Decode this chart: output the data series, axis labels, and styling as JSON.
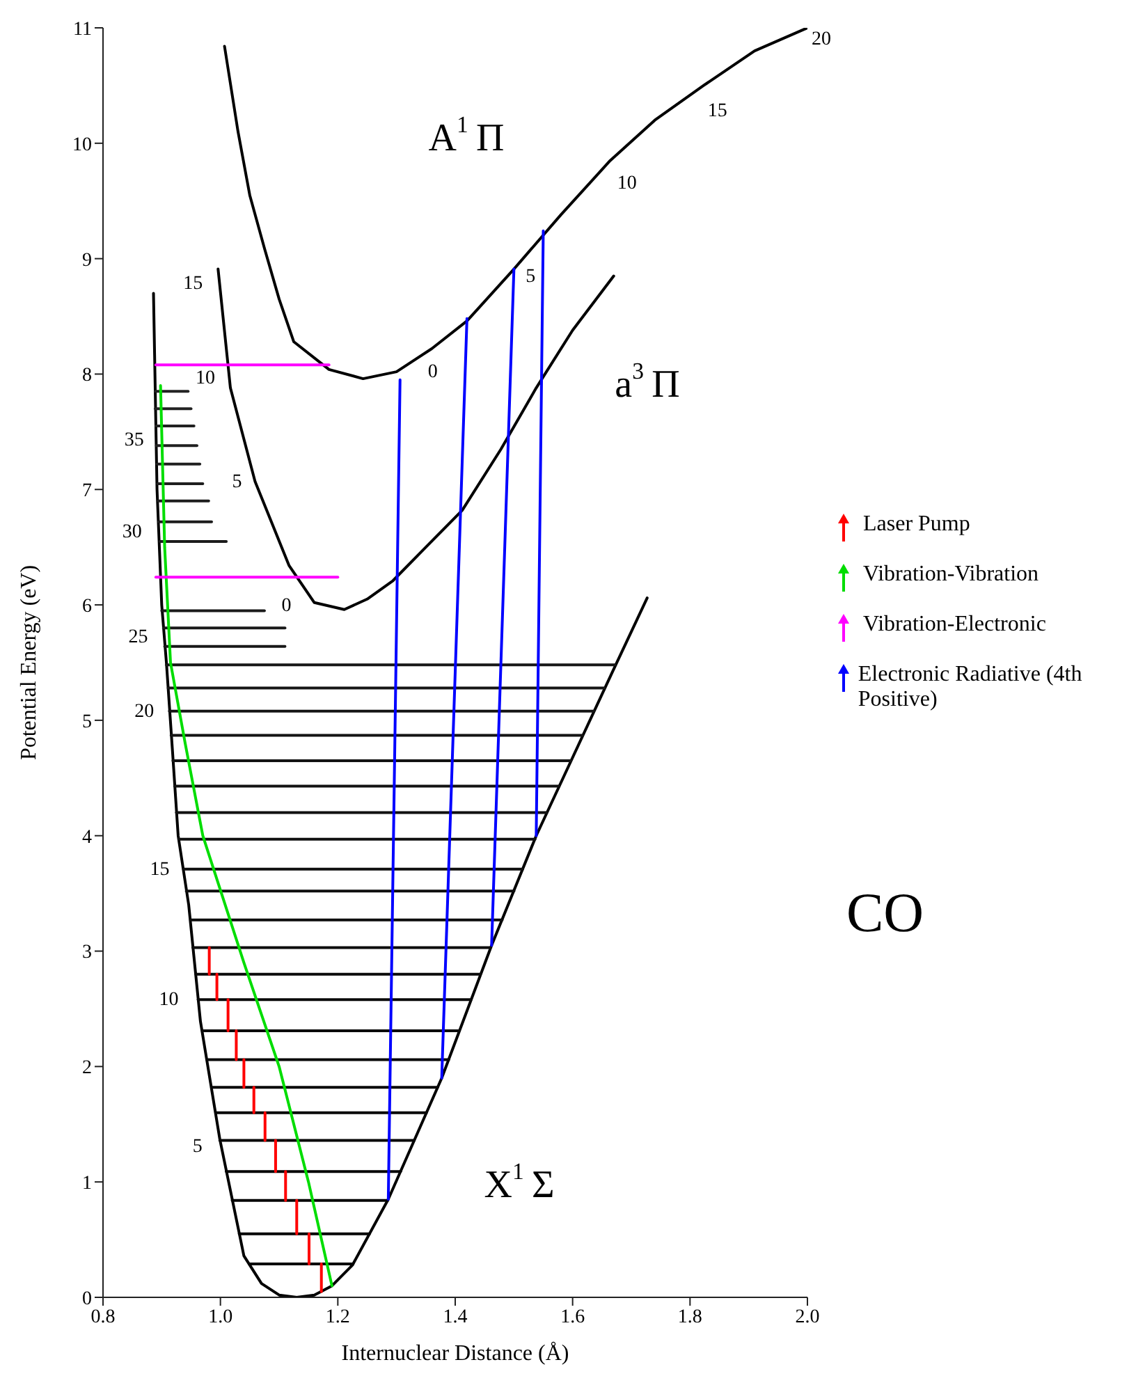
{
  "chart_data": {
    "type": "line",
    "xlabel": "Internuclear Distance (Å)",
    "ylabel": "Potential Energy (eV)",
    "xlim": [
      0.8,
      2.0
    ],
    "ylim": [
      0,
      11
    ],
    "xticks": [
      0.8,
      {
        "value": 1,
        "label": "1.0"
      },
      1.2,
      1.4,
      1.6,
      1.8,
      {
        "value": 2,
        "label": "2.0"
      }
    ],
    "yticks": [
      0,
      1,
      2,
      3,
      4,
      5,
      6,
      7,
      8,
      9,
      10,
      11
    ],
    "grid": false,
    "legend": "right",
    "marker": "none",
    "series": [
      {
        "color": "#000000",
        "x": [
          0.886,
          0.892,
          0.9,
          0.908,
          0.918,
          0.928,
          0.946,
          0.966,
          0.999,
          1.04,
          1.07,
          1.1,
          1.13,
          1.16,
          1.19,
          1.225,
          1.286,
          1.377,
          1.462,
          1.538,
          1.667,
          1.727
        ],
        "values": [
          8.7,
          7.0,
          6.0,
          5.5,
          4.76,
          4.0,
          3.4,
          2.39,
          1.37,
          0.36,
          0.12,
          0.02,
          0,
          0.02,
          0.1,
          0.28,
          0.85,
          1.9,
          3.05,
          4.0,
          5.41,
          6.06
        ]
      },
      {
        "color": "#000000",
        "x": [
          0.996,
          1.017,
          1.059,
          1.117,
          1.16,
          1.211,
          1.25,
          1.294,
          1.35,
          1.412,
          1.478,
          1.538,
          1.6,
          1.67
        ],
        "values": [
          8.91,
          7.88,
          7.07,
          6.34,
          6.02,
          5.96,
          6.05,
          6.21,
          6.5,
          6.82,
          7.35,
          7.88,
          8.38,
          8.85
        ]
      },
      {
        "color": "#000000",
        "x": [
          1.007,
          1.03,
          1.05,
          1.075,
          1.1,
          1.125,
          1.185,
          1.243,
          1.3,
          1.36,
          1.42,
          1.5,
          1.58,
          1.664,
          1.74,
          1.823,
          1.91,
          2.0
        ],
        "values": [
          10.84,
          10.1,
          9.55,
          9.09,
          8.65,
          8.28,
          8.04,
          7.96,
          8.02,
          8.22,
          8.46,
          8.91,
          9.38,
          9.85,
          10.2,
          10.5,
          10.8,
          11.0
        ]
      },
      {
        "color": "#010101",
        "x": [
          1.049,
          1.226
        ],
        "values": [
          0.29,
          0.29
        ]
      },
      {
        "color": "#020202",
        "x": [
          1.032,
          1.254
        ],
        "values": [
          0.55,
          0.55
        ]
      },
      {
        "color": "#030303",
        "x": [
          1.02,
          1.285
        ],
        "values": [
          0.84,
          0.84
        ]
      },
      {
        "color": "#040404",
        "x": [
          1.01,
          1.307
        ],
        "values": [
          1.09,
          1.09
        ]
      },
      {
        "color": "#050505",
        "x": [
          0.999,
          1.33
        ],
        "values": [
          1.36,
          1.36
        ]
      },
      {
        "color": "#060606",
        "x": [
          0.992,
          1.351
        ],
        "values": [
          1.6,
          1.6
        ]
      },
      {
        "color": "#070707",
        "x": [
          0.985,
          1.37
        ],
        "values": [
          1.82,
          1.82
        ]
      },
      {
        "color": "#080808",
        "x": [
          0.977,
          1.389
        ],
        "values": [
          2.06,
          2.06
        ]
      },
      {
        "color": "#090909",
        "x": [
          0.969,
          1.407
        ],
        "values": [
          2.31,
          2.31
        ]
      },
      {
        "color": "#0a0a0a",
        "x": [
          0.962,
          1.427
        ],
        "values": [
          2.58,
          2.58
        ]
      },
      {
        "color": "#0b0b0b",
        "x": [
          0.958,
          1.443
        ],
        "values": [
          2.8,
          2.8
        ]
      },
      {
        "color": "#0c0c0c",
        "x": [
          0.953,
          1.46
        ],
        "values": [
          3.03,
          3.03
        ]
      },
      {
        "color": "#0d0d0d",
        "x": [
          0.949,
          1.48
        ],
        "values": [
          3.27,
          3.27
        ]
      },
      {
        "color": "#0e0e0e",
        "x": [
          0.942,
          1.5
        ],
        "values": [
          3.52,
          3.52
        ]
      },
      {
        "color": "#0f0f0f",
        "x": [
          0.937,
          1.515
        ],
        "values": [
          3.71,
          3.71
        ]
      },
      {
        "color": "#101010",
        "x": [
          0.929,
          1.536
        ],
        "values": [
          3.97,
          3.97
        ]
      },
      {
        "color": "#111111",
        "x": [
          0.925,
          1.556
        ],
        "values": [
          4.2,
          4.2
        ]
      },
      {
        "color": "#121212",
        "x": [
          0.922,
          1.577
        ],
        "values": [
          4.43,
          4.43
        ]
      },
      {
        "color": "#131313",
        "x": [
          0.919,
          1.597
        ],
        "values": [
          4.65,
          4.65
        ]
      },
      {
        "color": "#141414",
        "x": [
          0.916,
          1.617
        ],
        "values": [
          4.87,
          4.87
        ]
      },
      {
        "color": "#151515",
        "x": [
          0.913,
          1.636
        ],
        "values": [
          5.08,
          5.08
        ]
      },
      {
        "color": "#161616",
        "x": [
          0.911,
          1.654
        ],
        "values": [
          5.28,
          5.28
        ]
      },
      {
        "color": "#171717",
        "x": [
          0.908,
          1.672
        ],
        "values": [
          5.48,
          5.48
        ]
      },
      {
        "color": "#181818",
        "x": [
          0.905,
          1.11
        ],
        "values": [
          5.64,
          5.64
        ]
      },
      {
        "color": "#191919",
        "x": [
          0.903,
          1.11
        ],
        "values": [
          5.8,
          5.8
        ]
      },
      {
        "color": "#1a1a1a",
        "x": [
          0.9,
          1.075
        ],
        "values": [
          5.95,
          5.95
        ]
      },
      {
        "color": "#1b1b1b",
        "x": [
          0.897,
          1.01
        ],
        "values": [
          6.55,
          6.55
        ]
      },
      {
        "color": "#1c1c1c",
        "x": [
          0.895,
          0.985
        ],
        "values": [
          6.72,
          6.72
        ]
      },
      {
        "color": "#1d1d1d",
        "x": [
          0.894,
          0.98
        ],
        "values": [
          6.9,
          6.9
        ]
      },
      {
        "color": "#1e1e1e",
        "x": [
          0.893,
          0.97
        ],
        "values": [
          7.05,
          7.05
        ]
      },
      {
        "color": "#1f1f1f",
        "x": [
          0.892,
          0.965
        ],
        "values": [
          7.22,
          7.22
        ]
      },
      {
        "color": "#202020",
        "x": [
          0.891,
          0.96
        ],
        "values": [
          7.38,
          7.38
        ]
      },
      {
        "color": "#212121",
        "x": [
          0.89,
          0.955
        ],
        "values": [
          7.55,
          7.55
        ]
      },
      {
        "color": "#222222",
        "x": [
          0.889,
          0.95
        ],
        "values": [
          7.7,
          7.7
        ]
      },
      {
        "color": "#232323",
        "x": [
          0.889,
          0.945
        ],
        "values": [
          7.85,
          7.85
        ]
      },
      {
        "name": "Laser Pump",
        "color": "#ff0000",
        "x": [
          1.172,
          1.172
        ],
        "values": [
          0.05,
          0.29
        ]
      },
      {
        "color": "#ff0000",
        "x": [
          1.151,
          1.151
        ],
        "values": [
          0.29,
          0.55
        ]
      },
      {
        "color": "#ff0000",
        "x": [
          1.13,
          1.13
        ],
        "values": [
          0.55,
          0.84
        ]
      },
      {
        "color": "#ff0000",
        "x": [
          1.111,
          1.111
        ],
        "values": [
          0.84,
          1.09
        ]
      },
      {
        "color": "#ff0000",
        "x": [
          1.094,
          1.094
        ],
        "values": [
          1.09,
          1.36
        ]
      },
      {
        "color": "#ff0000",
        "x": [
          1.076,
          1.076
        ],
        "values": [
          1.36,
          1.6
        ]
      },
      {
        "color": "#ff0000",
        "x": [
          1.057,
          1.057
        ],
        "values": [
          1.6,
          1.82
        ]
      },
      {
        "color": "#ff0000",
        "x": [
          1.04,
          1.04
        ],
        "values": [
          1.82,
          2.06
        ]
      },
      {
        "color": "#ff0000",
        "x": [
          1.027,
          1.027
        ],
        "values": [
          2.06,
          2.31
        ]
      },
      {
        "color": "#ff0000",
        "x": [
          1.013,
          1.013
        ],
        "values": [
          2.31,
          2.58
        ]
      },
      {
        "color": "#ff0000",
        "x": [
          0.994,
          0.994
        ],
        "values": [
          2.58,
          2.8
        ]
      },
      {
        "color": "#ff0000",
        "x": [
          0.981,
          0.981
        ],
        "values": [
          2.8,
          3.03
        ]
      },
      {
        "name": "Vibration-Vibration",
        "color": "#00dd00",
        "x": [
          1.19,
          1.15,
          1.1,
          1.04,
          0.97,
          0.94,
          0.915,
          0.905,
          0.898
        ],
        "values": [
          0.1,
          1.0,
          2.0,
          2.9,
          4.0,
          4.8,
          5.5,
          6.5,
          7.9
        ]
      },
      {
        "name": "Vibration-Electronic",
        "color": "#ff00ff",
        "x": [
          0.89,
          1.185
        ],
        "values": [
          8.08,
          8.08
        ]
      },
      {
        "color": "#ff00ff",
        "x": [
          0.89,
          1.2
        ],
        "values": [
          6.24,
          6.24
        ]
      },
      {
        "name": "Electronic Radiative (4th Positive)",
        "color": "#0000ff",
        "x": [
          1.306,
          1.286
        ],
        "values": [
          7.95,
          0.85
        ]
      },
      {
        "color": "#0000ff",
        "x": [
          1.42,
          1.377
        ],
        "values": [
          8.48,
          1.9
        ]
      },
      {
        "color": "#0000ff",
        "x": [
          1.5,
          1.462
        ],
        "values": [
          8.91,
          3.05
        ]
      },
      {
        "color": "#0000ff",
        "x": [
          1.55,
          1.538
        ],
        "values": [
          9.24,
          4.0
        ]
      }
    ],
    "annotations": [
      "A$^{1}$Π",
      "a$^{3}$Π",
      "X$^{1}$Σ",
      "CO",
      {
        "text": "0",
        "x": 1.3,
        "y": 8.02
      },
      {
        "text": "5",
        "x": 1.5,
        "y": 8.91
      },
      {
        "text": "10",
        "x": 1.664,
        "y": 9.85
      },
      {
        "text": "15",
        "x": 1.823,
        "y": 10.5
      },
      {
        "text": "20",
        "x": 2.0,
        "y": 11.0
      },
      {
        "text": "0",
        "x": 1.16,
        "y": 6.02
      },
      {
        "text": "5",
        "x": 1.059,
        "y": 7.07
      },
      {
        "text": "10",
        "x": 1.017,
        "y": 7.88
      },
      {
        "text": "15",
        "x": 0.996,
        "y": 8.91
      },
      {
        "text": "5",
        "x": 0.999,
        "y": 1.37
      },
      {
        "text": "10",
        "x": 0.962,
        "y": 2.58
      },
      {
        "text": "15",
        "x": 0.937,
        "y": 3.71
      },
      {
        "text": "20",
        "x": 0.913,
        "y": 5.08
      },
      {
        "text": "25",
        "x": 0.905,
        "y": 5.64
      },
      {
        "text": "30",
        "x": 0.897,
        "y": 6.55
      },
      {
        "text": "35",
        "x": 0.891,
        "y": 7.38
      }
    ]
  }
}
